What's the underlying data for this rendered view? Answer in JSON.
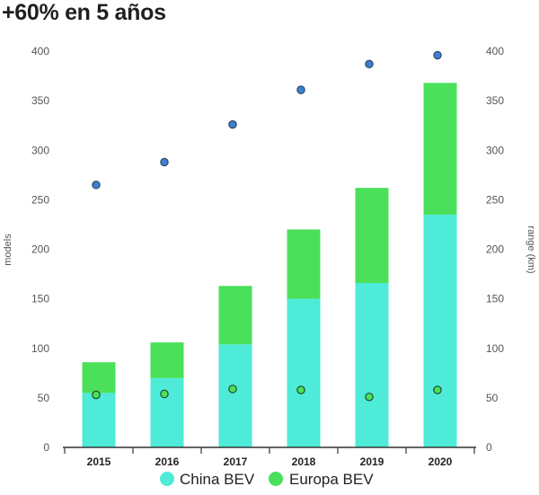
{
  "chart_data": {
    "type": "bar",
    "title": "+60% en 5 años",
    "categories": [
      "2015",
      "2016",
      "2017",
      "2018",
      "2019",
      "2020"
    ],
    "series": [
      {
        "name": "China BEV",
        "type": "stacked-bar",
        "axis": "left",
        "color": "#4eebd9",
        "values": [
          55,
          70,
          104,
          150,
          166,
          235
        ]
      },
      {
        "name": "Europa BEV",
        "type": "stacked-bar",
        "axis": "left",
        "color": "#4ae05a",
        "values": [
          31,
          36,
          59,
          70,
          96,
          133
        ]
      },
      {
        "type": "scatter",
        "axis": "right",
        "color": "#3f7fcf",
        "values": [
          265,
          288,
          326,
          361,
          387,
          396
        ]
      },
      {
        "type": "scatter",
        "axis": "right",
        "color": "#4ae05a",
        "values": [
          53,
          54,
          59,
          58,
          51,
          58
        ]
      }
    ],
    "ylabel": "models",
    "y2label": "range (km)",
    "ylim": [
      0,
      400
    ],
    "y2lim": [
      0,
      400
    ],
    "yticks": [
      "0",
      "50",
      "100",
      "150",
      "200",
      "250",
      "300",
      "350",
      "400"
    ],
    "y2ticks": [
      "0",
      "50",
      "100",
      "150",
      "200",
      "250",
      "300",
      "350",
      "400"
    ],
    "legend": "bottom",
    "grid": false
  }
}
